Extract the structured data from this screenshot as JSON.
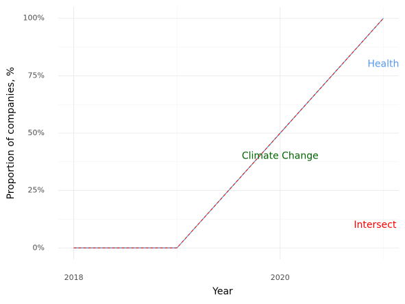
{
  "chart_data": {
    "type": "line",
    "x_label": "Year",
    "y_label": "Proportion of companies, %",
    "x": [
      2018,
      2019,
      2020,
      2021
    ],
    "series": [
      {
        "name": "Climate Change",
        "color": "#006400",
        "values": [
          0,
          0,
          50,
          100
        ],
        "label_x": 2020,
        "label_y": 40
      },
      {
        "name": "Health",
        "color": "#5599ee",
        "values": [
          0,
          0,
          50,
          100
        ],
        "label_x": 2021,
        "label_y": 80
      },
      {
        "name": "Intersect",
        "color": "#ff0000",
        "values": [
          0,
          0,
          50,
          100
        ],
        "label_x": 2020.92,
        "label_y": 10,
        "dashed": true
      }
    ],
    "xlim": [
      2017.85,
      2021.15
    ],
    "ylim": [
      -5,
      105
    ],
    "xticks": [
      2018,
      2020
    ],
    "yticks": [
      {
        "value": 0,
        "label": "0%"
      },
      {
        "value": 25,
        "label": "25%"
      },
      {
        "value": 50,
        "label": "50%"
      },
      {
        "value": 75,
        "label": "75%"
      },
      {
        "value": 100,
        "label": "100%"
      }
    ],
    "xminor": [
      2019,
      2021
    ],
    "yminor": [
      12.5,
      37.5,
      62.5,
      87.5
    ],
    "grid": true
  }
}
